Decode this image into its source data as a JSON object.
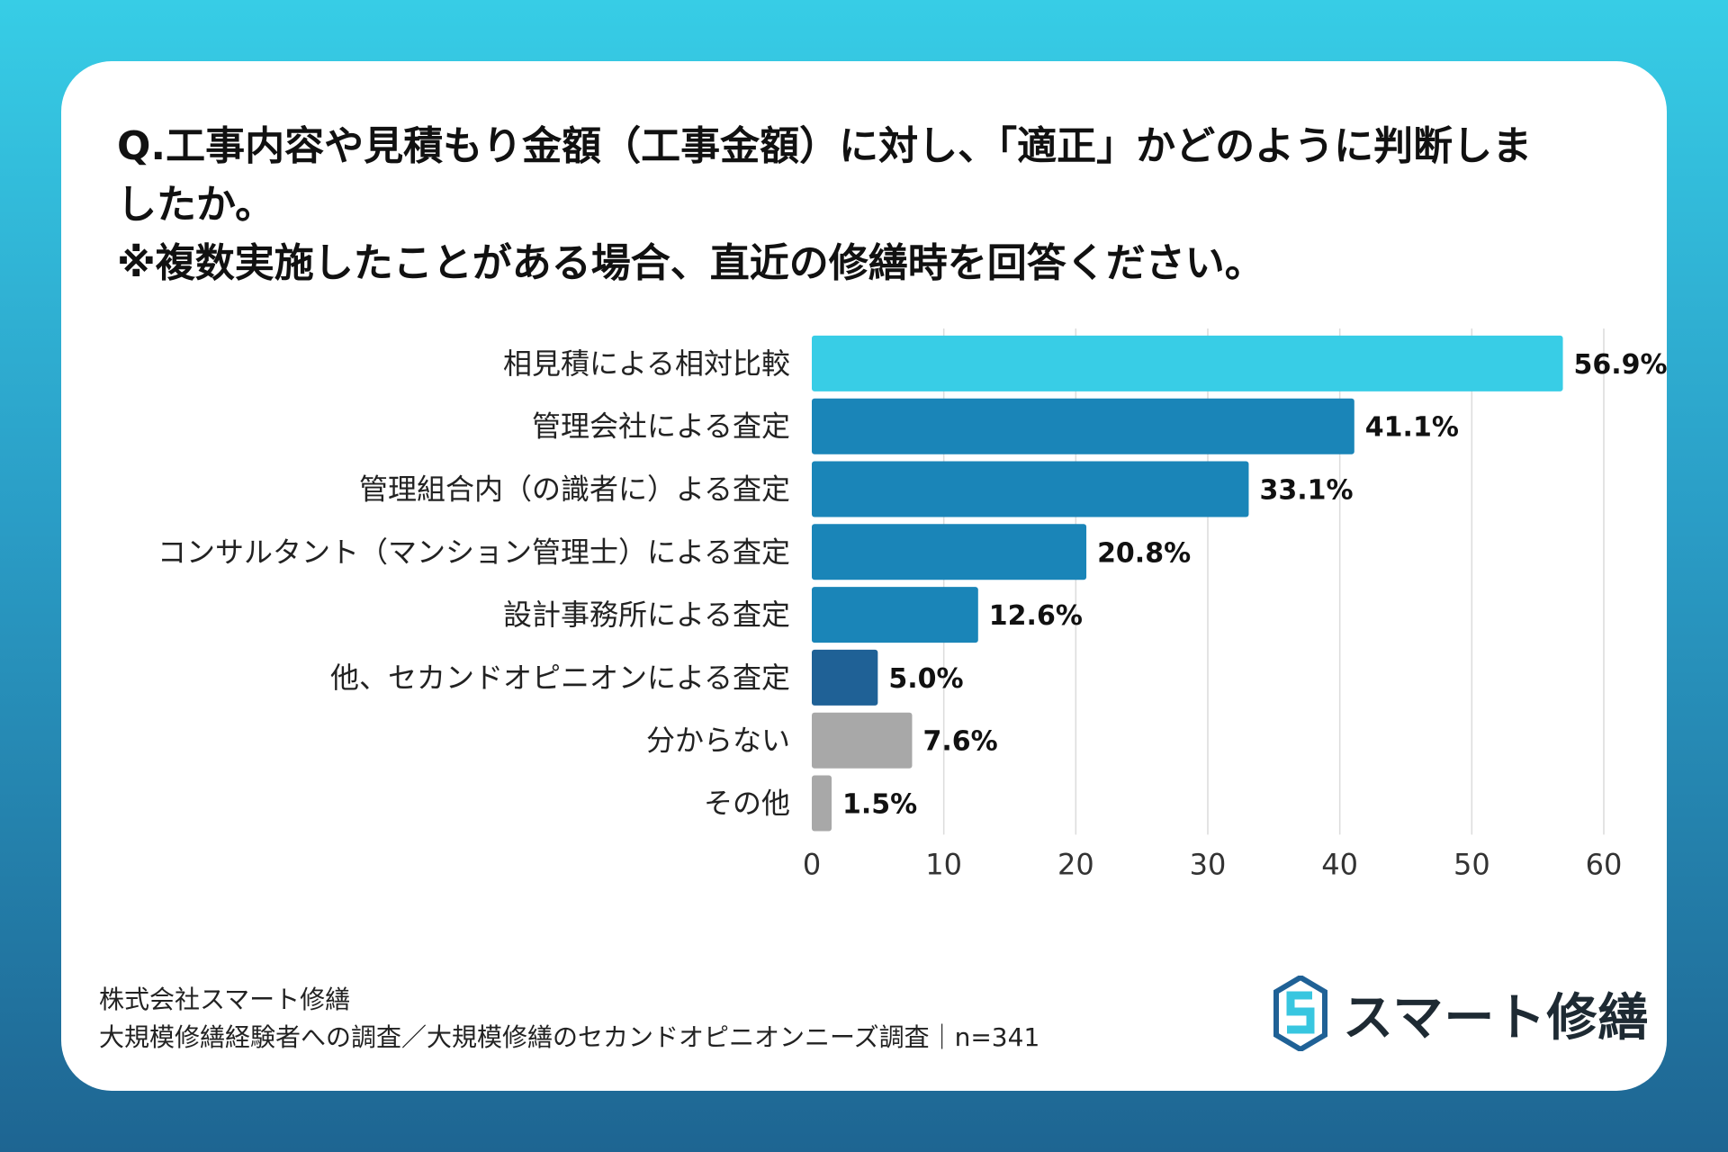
{
  "question": {
    "line1": "Q.工事内容や見積もり金額（工事金額）に対し、「適正」かどのように判断しま",
    "line2": "したか。",
    "line3": "※複数実施したことがある場合、直近の修繕時を回答ください。"
  },
  "chart_data": {
    "type": "bar",
    "orientation": "horizontal",
    "categories": [
      "相見積による相対比較",
      "管理会社による査定",
      "管理組合内（の識者に）よる査定",
      "コンサルタント（マンション管理士）による査定",
      "設計事務所による査定",
      "他、セカンドオピニオンによる査定",
      "分からない",
      "その他"
    ],
    "values": [
      56.9,
      41.1,
      33.1,
      20.8,
      12.6,
      5.0,
      7.6,
      1.5
    ],
    "value_labels": [
      "56.9%",
      "41.1%",
      "33.1%",
      "20.8%",
      "12.6%",
      "5.0%",
      "7.6%",
      "1.5%"
    ],
    "bar_colors": [
      "#38cde6",
      "#1a85b8",
      "#1a85b8",
      "#1a85b8",
      "#1a85b8",
      "#1f6196",
      "#a8a8a8",
      "#a8a8a8"
    ],
    "xlim": [
      0,
      60
    ],
    "xticks": [
      0,
      10,
      20,
      30,
      40,
      50,
      60
    ],
    "grid": true
  },
  "source": {
    "line1": "株式会社スマート修繕",
    "line2": "大規模修繕経験者への調査／大規模修繕のセカンドオピニオンニーズ調査｜n=341"
  },
  "logo": {
    "icon": "s-hexagon-logo-icon",
    "text": "スマート修繕",
    "colors": [
      "#38c6e0",
      "#1f6196"
    ]
  }
}
